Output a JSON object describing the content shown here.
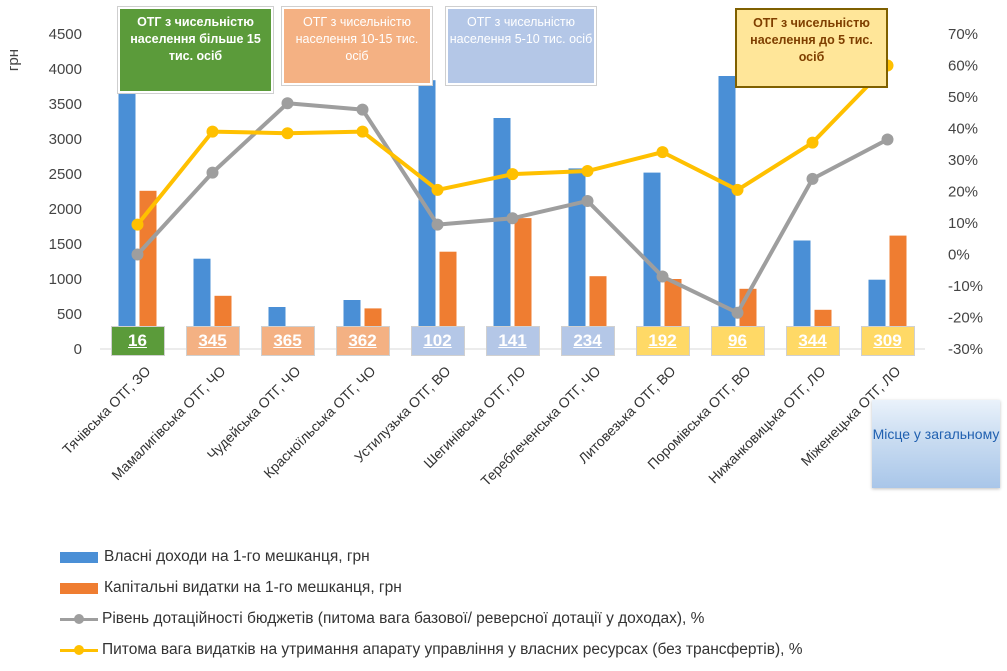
{
  "chart_data": {
    "type": "bar-line-combo",
    "categories": [
      "Тячівська  ОТГ, ЗО",
      "Мамалигівська  ОТГ, ЧО",
      "Чудейська  ОТГ, ЧО",
      "Красноїльська  ОТГ, ЧО",
      "Устилузька  ОТГ, ВО",
      "Шегинівська  ОТГ, ЛО",
      "Тереблеченська ОТГ, ЧО",
      "Литовезька  ОТГ, ВО",
      "Поромівська  ОТГ, ВО",
      "Нижанковицька  ОТГ, ЛО",
      "Міженецька  ОТГ, ЛО"
    ],
    "ylabel": "грн",
    "ylim": [
      0,
      4500
    ],
    "yticks": [
      "0",
      "500",
      "1000",
      "1500",
      "2000",
      "2500",
      "3000",
      "3500",
      "4000",
      "4500"
    ],
    "y2lim": [
      -30,
      70
    ],
    "y2ticks": [
      "-30%",
      "-20%",
      "-10%",
      "0%",
      "10%",
      "20%",
      "30%",
      "40%",
      "50%",
      "60%",
      "70%"
    ],
    "series": [
      {
        "name": "Власні доходи на 1-го мешканця, грн",
        "type": "bar",
        "axis": "left",
        "color": "#4a8fd6",
        "values": [
          4280,
          1290,
          600,
          700,
          3840,
          3300,
          2580,
          2520,
          3900,
          1550,
          990
        ]
      },
      {
        "name": "Капітальні видатки  на 1-го мешканця, грн",
        "type": "bar",
        "axis": "left",
        "color": "#ef7d31",
        "values": [
          2260,
          760,
          0,
          580,
          1390,
          1870,
          1040,
          1000,
          860,
          560,
          1620
        ]
      },
      {
        "name": "Рівень дотаційності  бюджетів  (питома вага базової/ реверсної дотації   у доходах), %",
        "type": "line",
        "axis": "right",
        "color": "#9e9e9e",
        "values": [
          0,
          26,
          48,
          46,
          9.5,
          11.5,
          17,
          -7,
          -18.5,
          24,
          36.5
        ]
      },
      {
        "name": "Питома вага видатків на утримання апарату управління у власних ресурсах (без трансфертів), %",
        "type": "line",
        "axis": "right",
        "color": "#ffc000",
        "values": [
          9.5,
          39,
          38.5,
          39,
          20.5,
          25.5,
          26.5,
          32.5,
          20.5,
          35.5,
          60
        ]
      }
    ],
    "ranks": [
      "16",
      "345",
      "365",
      "362",
      "102",
      "141",
      "234",
      "192",
      "96",
      "344",
      "309"
    ],
    "rank_colors": [
      "#5b9b3a",
      "#f4b183",
      "#f4b183",
      "#f4b183",
      "#b4c7e7",
      "#b4c7e7",
      "#b4c7e7",
      "#ffd966",
      "#ffd966",
      "#ffd966",
      "#ffd966"
    ],
    "groups": [
      {
        "label": "ОТГ з чисельністю населення більше 15 тис. осіб",
        "bg": "#5b9b3a",
        "border": "#ffffff",
        "text": "#ffffff"
      },
      {
        "label": "ОТГ з чисельністю населення 10-15 тис. осіб",
        "bg": "#f4b183",
        "border": "#ffffff",
        "text": "#ffffff"
      },
      {
        "label": "ОТГ з чисельністю населення 5-10 тис. осіб",
        "bg": "#b4c7e7",
        "border": "#ffffff",
        "text": "#ffffff"
      },
      {
        "label": "ОТГ з чисельністю населення до 5 тис. осіб",
        "bg": "#ffe699",
        "border": "#7f6000",
        "text": "#7f3f00"
      }
    ],
    "rank_legend": "Місце у загальному",
    "legend_position": "bottom-left",
    "grid": false
  }
}
